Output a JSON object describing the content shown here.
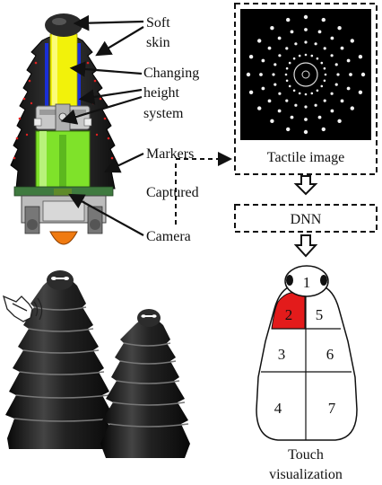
{
  "labels": {
    "soft_skin_line1": "Soft",
    "soft_skin_line2": "skin",
    "changing_line1": "Changing",
    "changing_line2": "height",
    "changing_line3": "system",
    "markers": "Markers",
    "captured": "Captured",
    "camera": "Camera",
    "tactile_image": "Tactile image",
    "dnn": "DNN",
    "touch_line1": "Touch",
    "touch_line2": "visualization"
  },
  "regions": [
    {
      "id": "1",
      "label": "1",
      "active": false
    },
    {
      "id": "2",
      "label": "2",
      "active": true
    },
    {
      "id": "3",
      "label": "3",
      "active": false
    },
    {
      "id": "4",
      "label": "4",
      "active": false
    },
    {
      "id": "5",
      "label": "5",
      "active": false
    },
    {
      "id": "6",
      "label": "6",
      "active": false
    },
    {
      "id": "7",
      "label": "7",
      "active": false
    }
  ],
  "colors": {
    "active_region": "#e31b1b",
    "yellow_shaft": "#f2f20a",
    "green_tube": "#7fe22a",
    "camera_orange": "#f07a10",
    "skin_black": "#1b1b1b"
  }
}
